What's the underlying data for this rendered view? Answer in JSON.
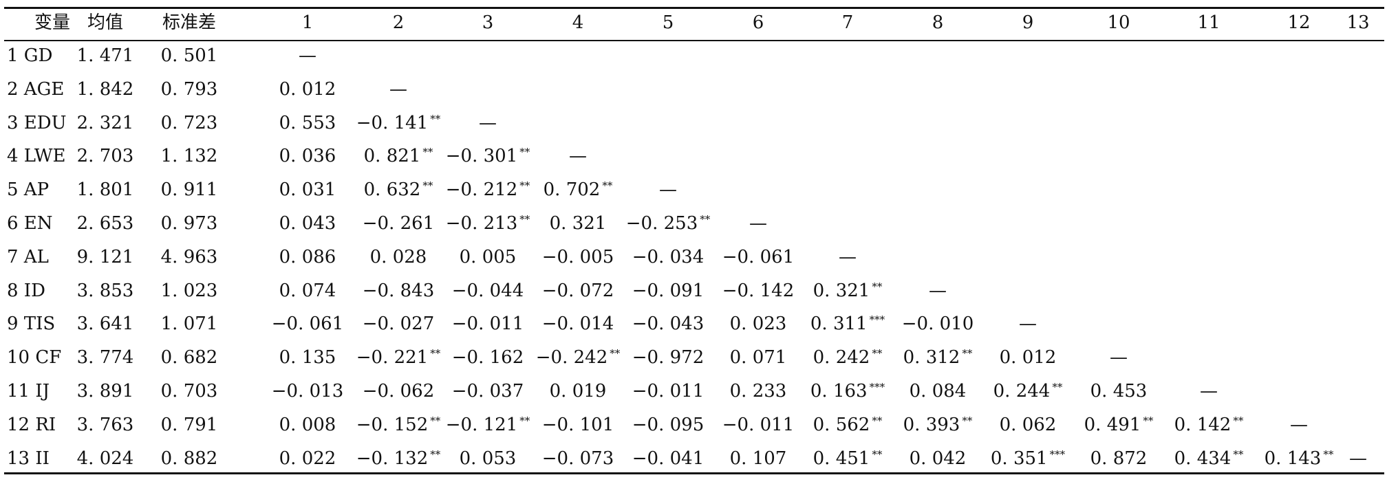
{
  "headers": [
    "变量",
    "均值",
    "标准差",
    "1",
    "2",
    "3",
    "4",
    "5",
    "6",
    "7",
    "8",
    "9",
    "10",
    "11",
    "12",
    "13"
  ],
  "rows": [
    {
      "label": "1  GD",
      "mean": "1. 471",
      "sd": "0. 501",
      "cells": [
        {
          "v": "—",
          "s": ""
        }
      ]
    },
    {
      "label": "2  AGE",
      "mean": "1. 842",
      "sd": "0. 793",
      "cells": [
        {
          "v": "0. 012",
          "s": ""
        },
        {
          "v": "—",
          "s": ""
        }
      ]
    },
    {
      "label": "3  EDU",
      "mean": "2. 321",
      "sd": "0. 723",
      "cells": [
        {
          "v": "0. 553",
          "s": ""
        },
        {
          "v": "−0. 141",
          "s": "**"
        },
        {
          "v": "—",
          "s": ""
        }
      ]
    },
    {
      "label": "4  LWE",
      "mean": "2. 703",
      "sd": "1. 132",
      "cells": [
        {
          "v": "0. 036",
          "s": ""
        },
        {
          "v": "0. 821",
          "s": "**"
        },
        {
          "v": "−0. 301",
          "s": "**"
        },
        {
          "v": "—",
          "s": ""
        }
      ]
    },
    {
      "label": "5  AP",
      "mean": "1. 801",
      "sd": "0. 911",
      "cells": [
        {
          "v": "0. 031",
          "s": ""
        },
        {
          "v": "0. 632",
          "s": "**"
        },
        {
          "v": "−0. 212",
          "s": "**"
        },
        {
          "v": "0. 702",
          "s": "**"
        },
        {
          "v": "—",
          "s": ""
        }
      ]
    },
    {
      "label": "6  EN",
      "mean": "2. 653",
      "sd": "0. 973",
      "cells": [
        {
          "v": "0. 043",
          "s": ""
        },
        {
          "v": "−0. 261",
          "s": ""
        },
        {
          "v": "−0. 213",
          "s": "**"
        },
        {
          "v": "0. 321",
          "s": ""
        },
        {
          "v": "−0. 253",
          "s": "**"
        },
        {
          "v": "—",
          "s": ""
        }
      ]
    },
    {
      "label": "7  AL",
      "mean": "9. 121",
      "sd": "4. 963",
      "cells": [
        {
          "v": "0. 086",
          "s": ""
        },
        {
          "v": "0. 028",
          "s": ""
        },
        {
          "v": "0. 005",
          "s": ""
        },
        {
          "v": "−0. 005",
          "s": ""
        },
        {
          "v": "−0. 034",
          "s": ""
        },
        {
          "v": "−0. 061",
          "s": ""
        },
        {
          "v": "—",
          "s": ""
        }
      ]
    },
    {
      "label": "8  ID",
      "mean": "3. 853",
      "sd": "1. 023",
      "cells": [
        {
          "v": "0. 074",
          "s": ""
        },
        {
          "v": "−0. 843",
          "s": ""
        },
        {
          "v": "−0. 044",
          "s": ""
        },
        {
          "v": "−0. 072",
          "s": ""
        },
        {
          "v": "−0. 091",
          "s": ""
        },
        {
          "v": "−0. 142",
          "s": ""
        },
        {
          "v": "0. 321",
          "s": "**"
        },
        {
          "v": "—",
          "s": ""
        }
      ]
    },
    {
      "label": "9  TIS",
      "mean": "3. 641",
      "sd": "1. 071",
      "cells": [
        {
          "v": "−0. 061",
          "s": ""
        },
        {
          "v": "−0. 027",
          "s": ""
        },
        {
          "v": "−0. 011",
          "s": ""
        },
        {
          "v": "−0. 014",
          "s": ""
        },
        {
          "v": "−0. 043",
          "s": ""
        },
        {
          "v": "0. 023",
          "s": ""
        },
        {
          "v": "0. 311",
          "s": "***"
        },
        {
          "v": "−0. 010",
          "s": ""
        },
        {
          "v": "—",
          "s": ""
        }
      ]
    },
    {
      "label": "10 CF",
      "mean": "3. 774",
      "sd": "0. 682",
      "cells": [
        {
          "v": "0. 135",
          "s": ""
        },
        {
          "v": "−0. 221",
          "s": "**"
        },
        {
          "v": "−0. 162",
          "s": ""
        },
        {
          "v": "−0. 242",
          "s": "**"
        },
        {
          "v": "−0. 972",
          "s": ""
        },
        {
          "v": "0. 071",
          "s": ""
        },
        {
          "v": "0. 242",
          "s": "**"
        },
        {
          "v": "0. 312",
          "s": "**"
        },
        {
          "v": "0. 012",
          "s": ""
        },
        {
          "v": "—",
          "s": ""
        }
      ]
    },
    {
      "label": "11 IJ",
      "mean": "3. 891",
      "sd": "0. 703",
      "cells": [
        {
          "v": "−0. 013",
          "s": ""
        },
        {
          "v": "−0. 062",
          "s": ""
        },
        {
          "v": "−0. 037",
          "s": ""
        },
        {
          "v": "0. 019",
          "s": ""
        },
        {
          "v": "−0. 011",
          "s": ""
        },
        {
          "v": "0. 233",
          "s": ""
        },
        {
          "v": "0. 163",
          "s": "***"
        },
        {
          "v": "0. 084",
          "s": ""
        },
        {
          "v": "0. 244",
          "s": "**"
        },
        {
          "v": "0. 453",
          "s": ""
        },
        {
          "v": "—",
          "s": ""
        }
      ]
    },
    {
      "label": "12 RI",
      "mean": "3. 763",
      "sd": "0. 791",
      "cells": [
        {
          "v": "0. 008",
          "s": ""
        },
        {
          "v": "−0. 152",
          "s": "**"
        },
        {
          "v": "−0. 121",
          "s": "**"
        },
        {
          "v": "−0. 101",
          "s": ""
        },
        {
          "v": "−0. 095",
          "s": ""
        },
        {
          "v": "−0. 011",
          "s": ""
        },
        {
          "v": "0. 562",
          "s": "**"
        },
        {
          "v": "0. 393",
          "s": "**"
        },
        {
          "v": "0. 062",
          "s": ""
        },
        {
          "v": "0. 491",
          "s": "**"
        },
        {
          "v": "0. 142",
          "s": "**"
        },
        {
          "v": "—",
          "s": ""
        }
      ]
    },
    {
      "label": "13 II",
      "mean": "4. 024",
      "sd": "0. 882",
      "cells": [
        {
          "v": "0. 022",
          "s": ""
        },
        {
          "v": "−0. 132",
          "s": "**"
        },
        {
          "v": "0. 053",
          "s": ""
        },
        {
          "v": "−0. 073",
          "s": ""
        },
        {
          "v": "−0. 041",
          "s": ""
        },
        {
          "v": "0. 107",
          "s": ""
        },
        {
          "v": "0. 451",
          "s": "**"
        },
        {
          "v": "0. 042",
          "s": ""
        },
        {
          "v": "0. 351",
          "s": "***"
        },
        {
          "v": "0. 872",
          "s": ""
        },
        {
          "v": "0. 434",
          "s": "**"
        },
        {
          "v": "0. 143",
          "s": "**"
        },
        {
          "v": "—",
          "s": ""
        }
      ]
    }
  ]
}
